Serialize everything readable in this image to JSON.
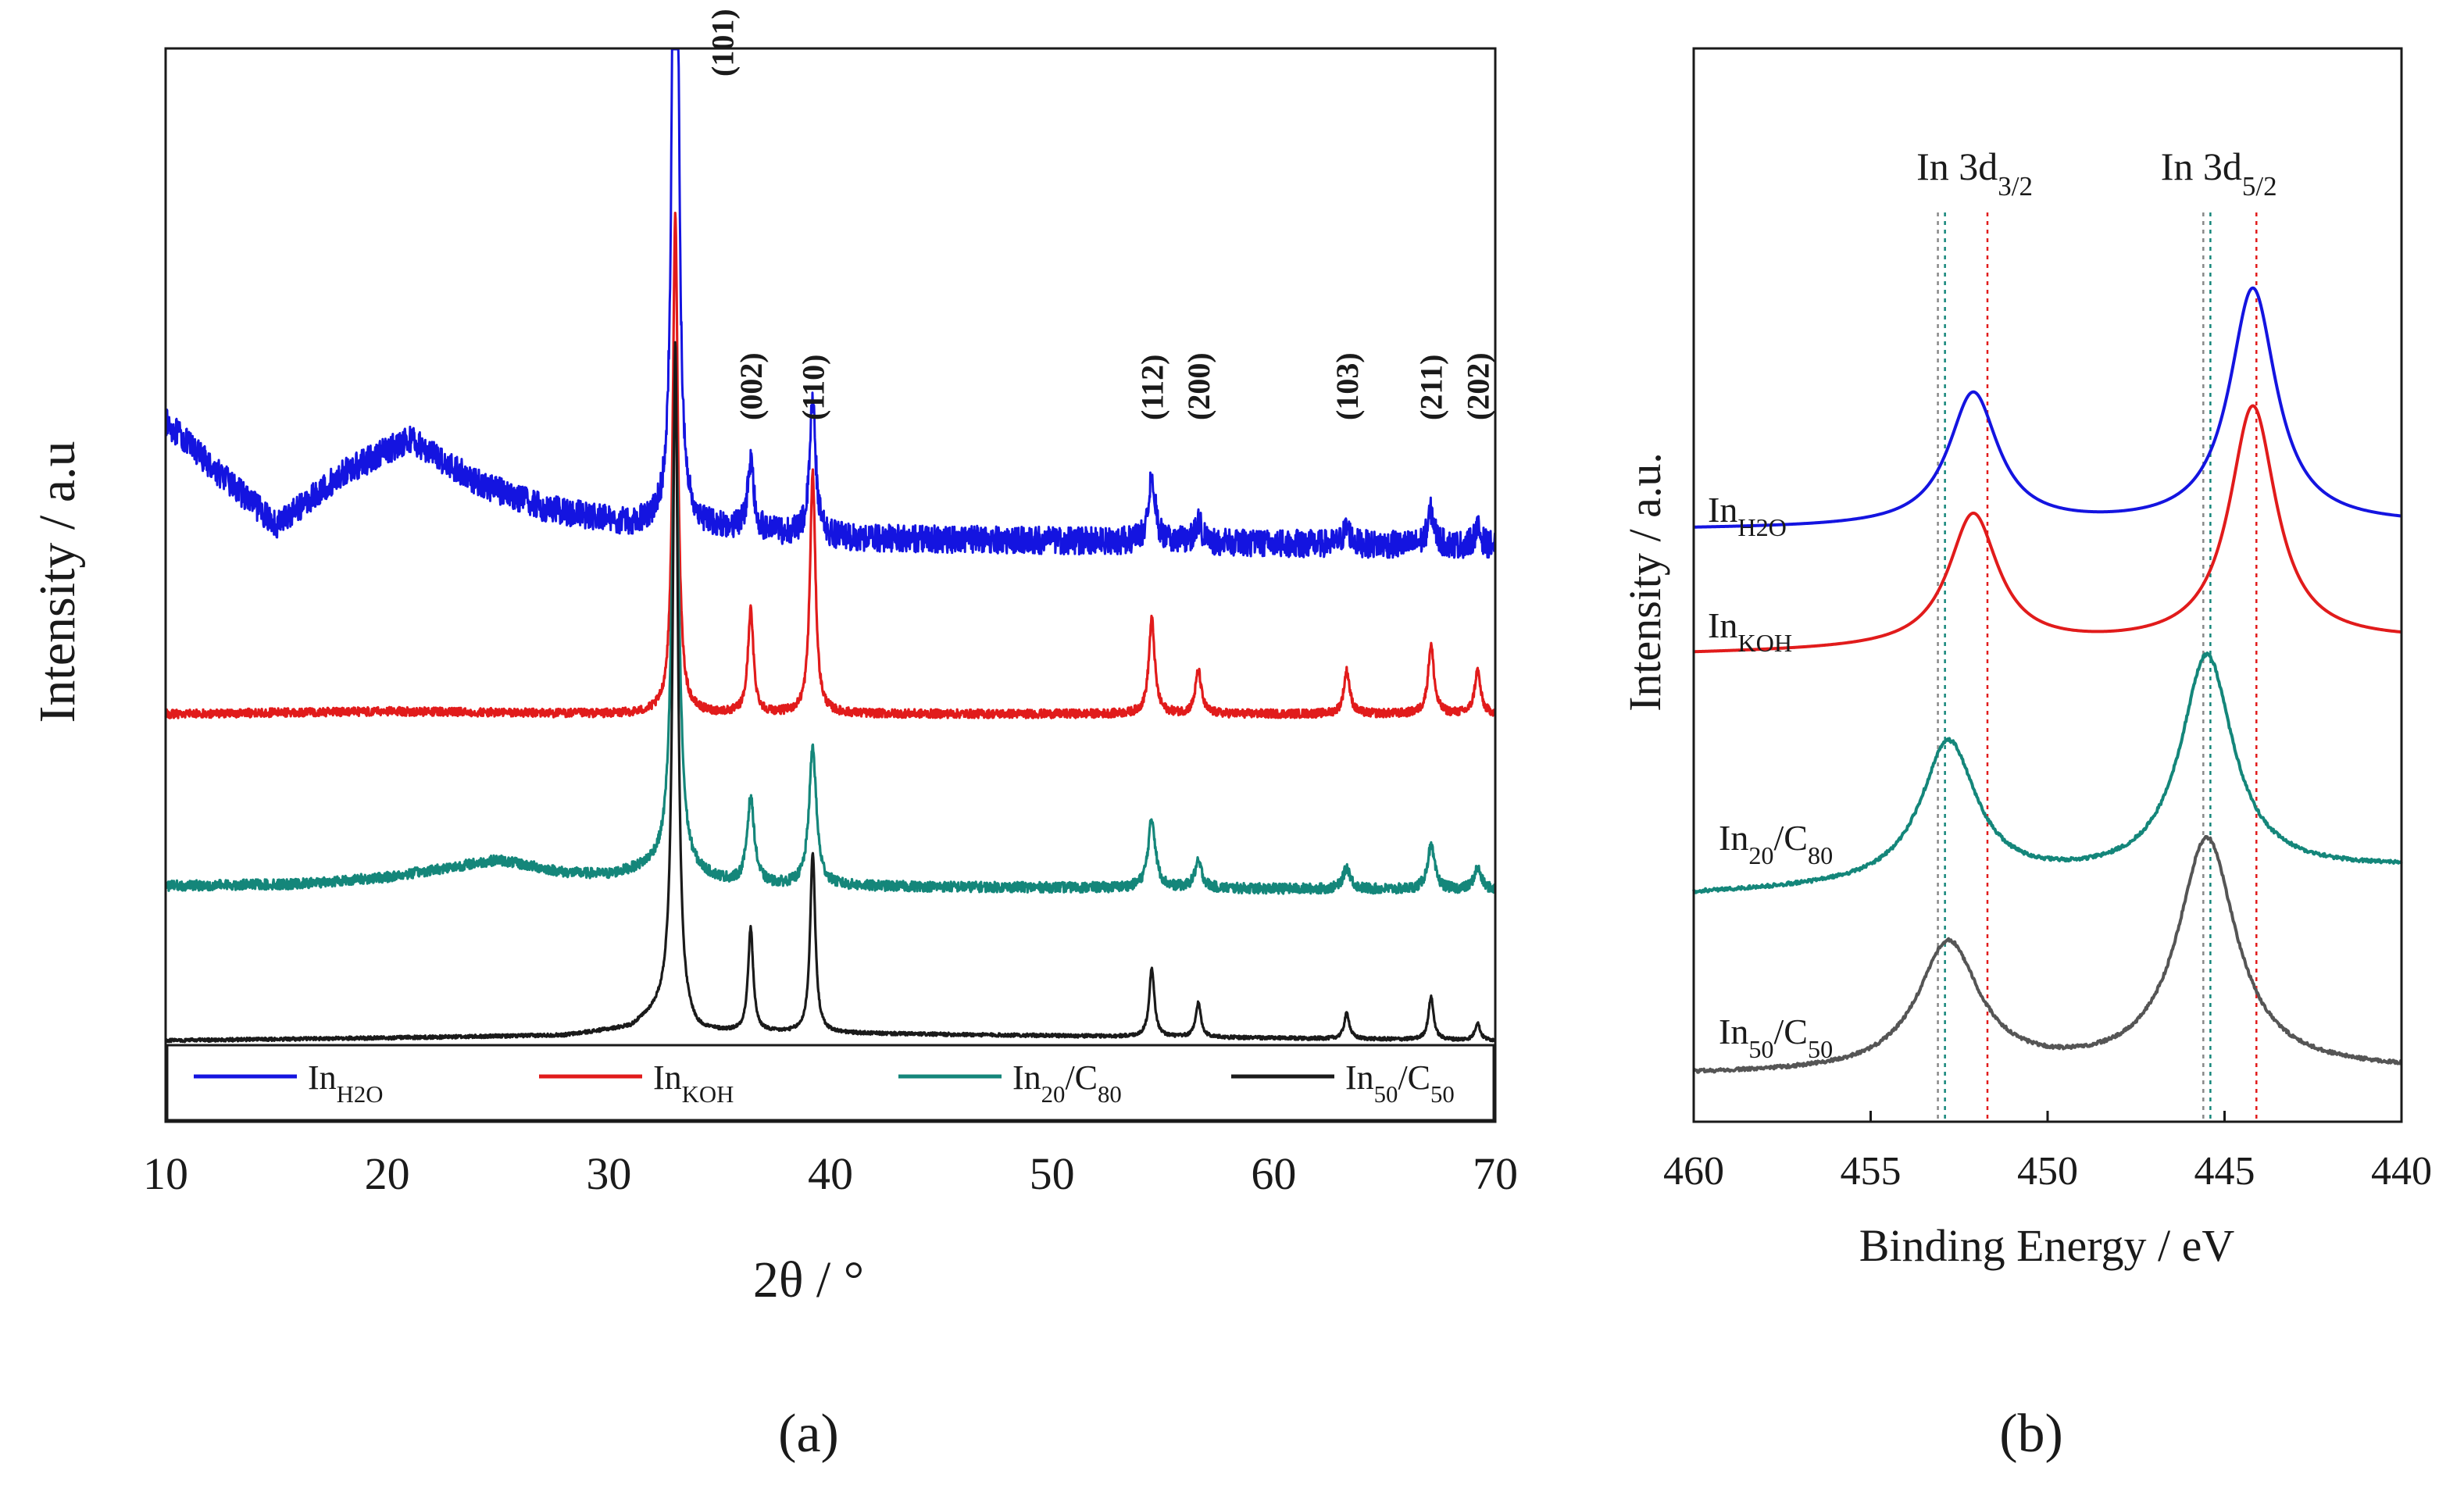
{
  "chart_data": [
    {
      "panel": "(a)",
      "type": "line",
      "title": "",
      "xlabel": "2θ / °",
      "ylabel": "Intensity / a.u",
      "xlim": [
        10,
        70
      ],
      "xticks": [
        "10",
        "20",
        "30",
        "40",
        "50",
        "60",
        "70"
      ],
      "y_axis_ticks": false,
      "peak_labels": [
        {
          "text": "(101)",
          "x": 33.0
        },
        {
          "text": "(002)",
          "x": 36.4
        },
        {
          "text": "(110)",
          "x": 39.2
        },
        {
          "text": "(112)",
          "x": 54.5
        },
        {
          "text": "(200)",
          "x": 56.6
        },
        {
          "text": "(103)",
          "x": 63.3
        },
        {
          "text": "(211)",
          "x": 67.1
        },
        {
          "text": "(202)",
          "x": 69.2
        }
      ],
      "legend": {
        "placement": "bottom",
        "entries": [
          {
            "base": "In",
            "sub": "H2O",
            "color": "#1414e0"
          },
          {
            "base": "In",
            "sub": "KOH",
            "color": "#e11b1b"
          },
          {
            "base": "In",
            "sub": "20",
            "mid": "/C",
            "sub2": "80",
            "color": "#14867a"
          },
          {
            "base": "In",
            "sub": "50",
            "mid": "/C",
            "sub2": "50",
            "color": "#1a1a1a"
          }
        ]
      },
      "series": [
        {
          "name": "InH2O",
          "color": "#1414e0",
          "offset": 0.6,
          "noise": 0.016,
          "background": [
            [
              10,
              0.12
            ],
            [
              12,
              0.07
            ],
            [
              15,
              0.0
            ],
            [
              18,
              0.06
            ],
            [
              21,
              0.1
            ],
            [
              24,
              0.05
            ],
            [
              27,
              0.02
            ],
            [
              31,
              0.0
            ],
            [
              33,
              0.0
            ],
            [
              40,
              -0.015
            ],
            [
              55,
              -0.02
            ],
            [
              70,
              -0.025
            ]
          ],
          "peaks": [
            {
              "x": 33.0,
              "h": 1.4,
              "w": 0.12
            },
            {
              "x": 36.4,
              "h": 0.08,
              "w": 0.16
            },
            {
              "x": 39.2,
              "h": 0.16,
              "w": 0.16
            },
            {
              "x": 54.5,
              "h": 0.08,
              "w": 0.18
            },
            {
              "x": 56.6,
              "h": 0.025,
              "w": 0.18
            },
            {
              "x": 63.3,
              "h": 0.02,
              "w": 0.18
            },
            {
              "x": 67.1,
              "h": 0.04,
              "w": 0.18
            },
            {
              "x": 69.2,
              "h": 0.02,
              "w": 0.18
            }
          ]
        },
        {
          "name": "InKOH",
          "color": "#e11b1b",
          "offset": 0.38,
          "noise": 0.005,
          "background": [
            [
              10,
              0.0
            ],
            [
              20,
              0.003
            ],
            [
              30,
              0.0
            ],
            [
              70,
              0.0
            ]
          ],
          "peaks": [
            {
              "x": 33.0,
              "h": 0.58,
              "w": 0.14
            },
            {
              "x": 36.4,
              "h": 0.12,
              "w": 0.15
            },
            {
              "x": 39.2,
              "h": 0.28,
              "w": 0.15
            },
            {
              "x": 54.5,
              "h": 0.11,
              "w": 0.16
            },
            {
              "x": 56.6,
              "h": 0.05,
              "w": 0.16
            },
            {
              "x": 63.3,
              "h": 0.05,
              "w": 0.16
            },
            {
              "x": 67.1,
              "h": 0.08,
              "w": 0.16
            },
            {
              "x": 69.2,
              "h": 0.05,
              "w": 0.16
            }
          ]
        },
        {
          "name": "In20/C80",
          "color": "#14867a",
          "offset": 0.18,
          "noise": 0.006,
          "background": [
            [
              10,
              0.0
            ],
            [
              16,
              0.002
            ],
            [
              20,
              0.01
            ],
            [
              25,
              0.03
            ],
            [
              28,
              0.015
            ],
            [
              30,
              0.012
            ],
            [
              32,
              0.02
            ],
            [
              36,
              0.0
            ],
            [
              70,
              -0.005
            ]
          ],
          "peaks": [
            {
              "x": 33.0,
              "h": 0.55,
              "w": 0.2
            },
            {
              "x": 36.4,
              "h": 0.1,
              "w": 0.2
            },
            {
              "x": 39.2,
              "h": 0.16,
              "w": 0.2
            },
            {
              "x": 54.5,
              "h": 0.08,
              "w": 0.2
            },
            {
              "x": 56.6,
              "h": 0.03,
              "w": 0.2
            },
            {
              "x": 63.3,
              "h": 0.025,
              "w": 0.2
            },
            {
              "x": 67.1,
              "h": 0.05,
              "w": 0.2
            },
            {
              "x": 69.2,
              "h": 0.025,
              "w": 0.2
            }
          ]
        },
        {
          "name": "In50/C50",
          "color": "#1a1a1a",
          "offset": 0.0,
          "noise": 0.002,
          "background": [
            [
              10,
              0.0
            ],
            [
              20,
              0.003
            ],
            [
              28,
              0.006
            ],
            [
              31,
              0.015
            ],
            [
              32.6,
              0.04
            ],
            [
              34,
              0.01
            ],
            [
              70,
              0.0
            ]
          ],
          "peaks": [
            {
              "x": 33.0,
              "h": 0.78,
              "w": 0.14
            },
            {
              "x": 36.4,
              "h": 0.12,
              "w": 0.14
            },
            {
              "x": 39.2,
              "h": 0.21,
              "w": 0.14
            },
            {
              "x": 54.5,
              "h": 0.08,
              "w": 0.14
            },
            {
              "x": 56.6,
              "h": 0.04,
              "w": 0.14
            },
            {
              "x": 63.3,
              "h": 0.03,
              "w": 0.14
            },
            {
              "x": 67.1,
              "h": 0.05,
              "w": 0.14
            },
            {
              "x": 69.2,
              "h": 0.02,
              "w": 0.14
            }
          ]
        }
      ]
    },
    {
      "panel": "(b)",
      "type": "line",
      "title": "",
      "xlabel": "Binding Energy / eV",
      "ylabel": "Intensity / a.u.",
      "xlim": [
        460,
        440
      ],
      "xticks": [
        "460",
        "455",
        "450",
        "445",
        "440"
      ],
      "y_axis_ticks": false,
      "annotations": [
        {
          "base": "In 3d",
          "sub": "3/2",
          "x": 451.4
        },
        {
          "base": "In 3d",
          "sub": "5/2",
          "x": 444.5
        }
      ],
      "reference_lines": [
        {
          "x": 452.9,
          "color": "#14867a"
        },
        {
          "x": 453.1,
          "color": "#888888"
        },
        {
          "x": 451.7,
          "color": "#e11b1b"
        },
        {
          "x": 445.6,
          "color": "#888888"
        },
        {
          "x": 445.4,
          "color": "#14867a"
        },
        {
          "x": 444.1,
          "color": "#e11b1b"
        }
      ],
      "series": [
        {
          "name": "InH2O",
          "label": {
            "base": "In",
            "sub": "H2O"
          },
          "color": "#1414e0",
          "baseline_left": 0.475,
          "baseline_right": 0.48,
          "peaks": [
            {
              "x": 452.1,
              "h": 0.155,
              "w": 0.85
            },
            {
              "x": 444.2,
              "h": 0.275,
              "w": 0.8
            }
          ]
        },
        {
          "name": "InKOH",
          "label": {
            "base": "In",
            "sub": "KOH"
          },
          "color": "#e11b1b",
          "baseline_left": 0.33,
          "baseline_right": 0.345,
          "peaks": [
            {
              "x": 452.1,
              "h": 0.155,
              "w": 0.85
            },
            {
              "x": 444.2,
              "h": 0.275,
              "w": 0.8
            }
          ]
        },
        {
          "name": "In20/C80",
          "label": {
            "base": "In",
            "sub": "20",
            "mid": "/C",
            "sub2": "80"
          },
          "color": "#14867a",
          "baseline_left": 0.05,
          "baseline_right": 0.08,
          "peaks": [
            {
              "x": 452.8,
              "h": 0.165,
              "w": 0.95
            },
            {
              "x": 445.5,
              "h": 0.255,
              "w": 0.9
            }
          ]
        },
        {
          "name": "In50/C50",
          "label": {
            "base": "In",
            "sub": "50",
            "mid": "/C",
            "sub2": "50"
          },
          "color": "#555555",
          "baseline_left": -0.16,
          "baseline_right": -0.155,
          "peaks": [
            {
              "x": 452.8,
              "h": 0.15,
              "w": 1.05
            },
            {
              "x": 445.5,
              "h": 0.27,
              "w": 1.0
            }
          ]
        }
      ]
    }
  ]
}
